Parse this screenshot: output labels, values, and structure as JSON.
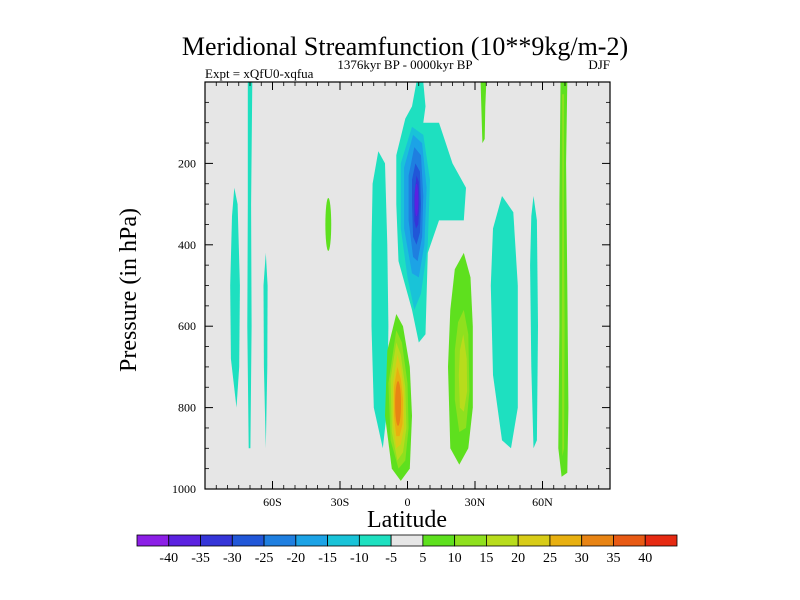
{
  "chart_data": {
    "type": "heatmap",
    "title": "Meridional Streamfunction (10**9kg/m-2)",
    "left_string": "Expt = xQfU0-xqfua",
    "center_string": "1376kyr BP - 0000kyr BP",
    "right_string": "DJF",
    "xlabel": "Latitude",
    "ylabel": "Pressure (in hPa)",
    "xlim": [
      -90,
      90
    ],
    "ylim": [
      1000,
      0
    ],
    "x_ticks": [
      {
        "value": -60,
        "label": "60S"
      },
      {
        "value": -30,
        "label": "30S"
      },
      {
        "value": 0,
        "label": "0"
      },
      {
        "value": 30,
        "label": "30N"
      },
      {
        "value": 60,
        "label": "60N"
      }
    ],
    "y_ticks": [
      {
        "value": 200,
        "label": "200"
      },
      {
        "value": 400,
        "label": "400"
      },
      {
        "value": 600,
        "label": "600"
      },
      {
        "value": 800,
        "label": "800"
      },
      {
        "value": 1000,
        "label": "1000"
      }
    ],
    "colorbar": {
      "labels": [
        "-40",
        "-35",
        "-30",
        "-25",
        "-20",
        "-15",
        "-10",
        "-5",
        "5",
        "10",
        "15",
        "20",
        "25",
        "30",
        "35",
        "40"
      ],
      "colors": [
        "#8c1fe6",
        "#5b22e0",
        "#3535d8",
        "#2157d8",
        "#1f7fe0",
        "#1ca3e6",
        "#19c3d8",
        "#1ee0c0",
        "#e6e6e6",
        "#5ee01e",
        "#8fe01e",
        "#b8dc1c",
        "#d8cc17",
        "#e8b010",
        "#e88414",
        "#e85a14",
        "#e62a12"
      ]
    },
    "background_level": "-5 to 5",
    "features": [
      {
        "name": "thin-band-60S",
        "level": "-10 to -5",
        "lat": -70,
        "pressure_range": [
          40,
          900
        ]
      },
      {
        "name": "band-75S",
        "level": "-10 to -5",
        "lat": -77,
        "pressure_range": [
          260,
          800
        ]
      },
      {
        "name": "band-63S",
        "level": "-10 to -5",
        "lat": -63,
        "pressure_range": [
          420,
          900
        ]
      },
      {
        "name": "patch-35S",
        "level": "5 to 10",
        "lat": -35,
        "pressure_range": [
          280,
          420
        ]
      },
      {
        "name": "tropical-upper-cell",
        "level": "-30 to -35",
        "lat": 3,
        "pressure_range": [
          60,
          640
        ],
        "core_value": -35
      },
      {
        "name": "tropical-lower-cell",
        "level": "25 to 30",
        "lat": -4,
        "pressure_range": [
          560,
          980
        ],
        "core_value": 30
      },
      {
        "name": "band-15S",
        "level": "-10 to -5",
        "lat": -13,
        "pressure_range": [
          170,
          900
        ]
      },
      {
        "name": "lower-cell-25N",
        "level": "10 to 15",
        "lat": 24,
        "pressure_range": [
          420,
          940
        ],
        "core_value": 15
      },
      {
        "name": "cell-40N",
        "level": "-10 to -5",
        "lat": 45,
        "pressure_range": [
          280,
          900
        ]
      },
      {
        "name": "band-57N",
        "level": "-10 to -5",
        "lat": 56,
        "pressure_range": [
          280,
          900
        ]
      },
      {
        "name": "band-70N",
        "level": "5 to 10",
        "lat": 69,
        "pressure_range": [
          0,
          970
        ]
      },
      {
        "name": "band-33N",
        "level": "5 to 10",
        "lat": 34,
        "pressure_range": [
          0,
          140
        ]
      }
    ]
  }
}
